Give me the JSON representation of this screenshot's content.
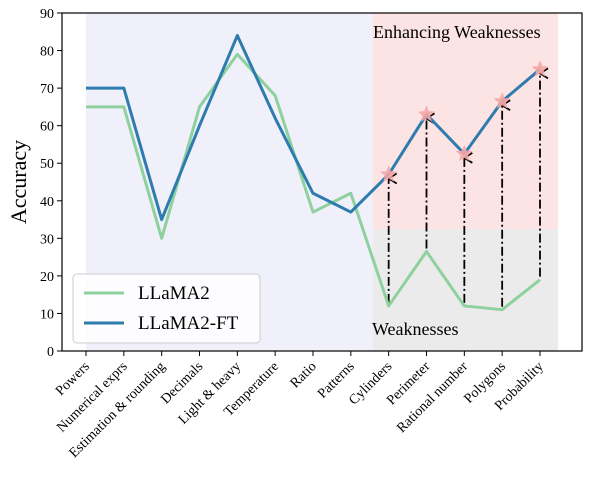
{
  "chart_data": {
    "type": "line",
    "ylabel": "Accuracy",
    "xlabel": "",
    "ylim": [
      0,
      90
    ],
    "yticks": [
      0,
      10,
      20,
      30,
      40,
      50,
      60,
      70,
      80,
      90
    ],
    "grid": false,
    "legend_position": "lower-left",
    "categories": [
      "Powers",
      "Numerical exprs",
      "Estimation & rounding",
      "Decimals",
      "Light & heavy",
      "Temperature",
      "Ratio",
      "Patterns",
      "Cylinders",
      "Perimeter",
      "Rational number",
      "Polygons",
      "Probability"
    ],
    "series": [
      {
        "name": "LLaMA2",
        "color": "#8fd19e",
        "values": [
          65,
          65,
          30,
          65,
          79,
          68,
          37,
          42,
          12,
          26.5,
          12,
          11,
          19
        ]
      },
      {
        "name": "LLaMA2-FT",
        "color": "#2e7cae",
        "values": [
          70,
          70,
          35,
          60,
          84,
          62,
          42,
          37,
          47,
          63,
          52.5,
          66.5,
          75
        ]
      }
    ],
    "annotations": {
      "enhancing_label": "Enhancing Weaknesses",
      "weakness_label": "Weaknesses",
      "background_region_color": "#f0f0fb",
      "enhancing_region_color": "#fde4e4",
      "weakness_region_color": "#ebebeb",
      "region_split_y": 32.5,
      "region_start_category": "Cylinders",
      "star_color": "#f4a6a6"
    }
  }
}
